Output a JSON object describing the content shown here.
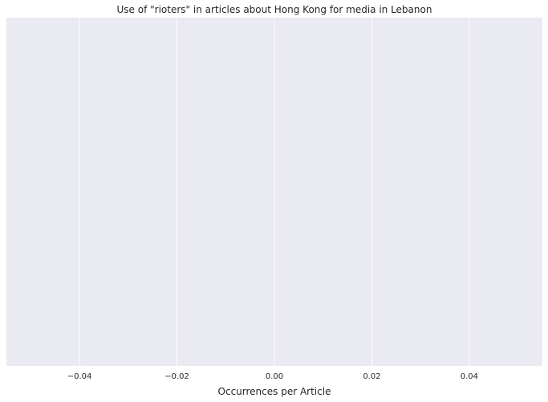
{
  "chart_data": {
    "type": "bar",
    "orientation": "horizontal",
    "title": "Use of \"rioters\" in articles about Hong Kong for media in Lebanon",
    "xlabel": "Occurrences per Article",
    "ylabel": "",
    "categories": [],
    "values": [],
    "xlim": [
      -0.055,
      0.055
    ],
    "xticks": [
      -0.04,
      -0.02,
      0.0,
      0.02,
      0.04
    ],
    "xtick_labels": [
      "−0.04",
      "−0.02",
      "0.00",
      "0.02",
      "0.04"
    ],
    "grid": true,
    "colors": {
      "plot_background": "#EAEAF2",
      "grid": "#FFFFFF",
      "text": "#262626"
    }
  }
}
